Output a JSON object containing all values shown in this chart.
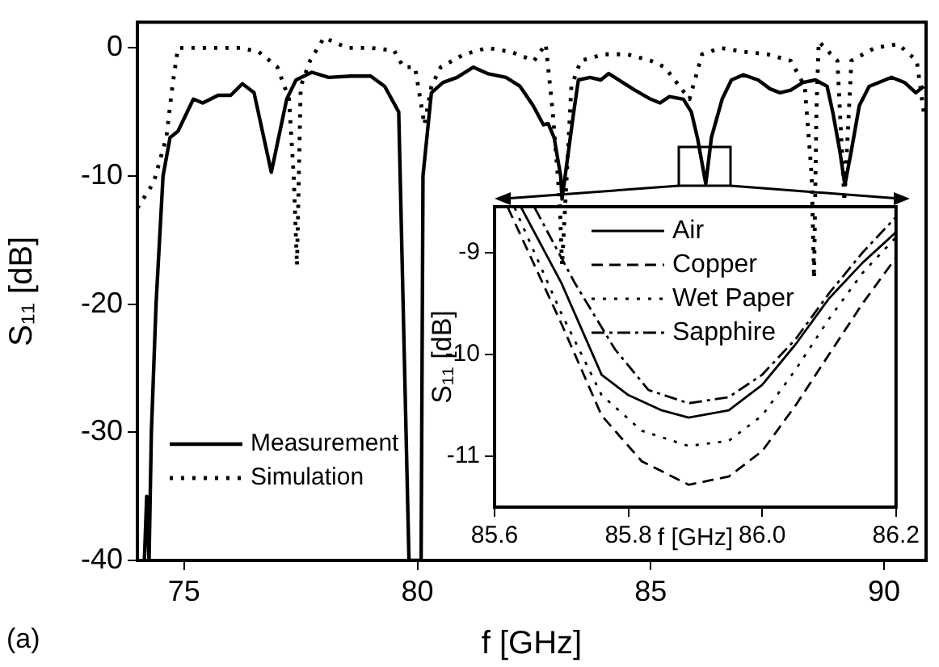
{
  "chart_data": [
    {
      "type": "line",
      "xlabel": "f [GHz]",
      "ylabel": "S₁₁ [dB]",
      "xlim": [
        74,
        90.9
      ],
      "ylim": [
        -40,
        2
      ],
      "xticks": [
        75,
        80,
        85,
        90
      ],
      "yticks": [
        0,
        -10,
        -20,
        -30,
        -40
      ],
      "grid": false,
      "legend": "bottom left",
      "marker": "none",
      "annotations": [
        "(a)"
      ],
      "series": [
        {
          "name": "Measurement",
          "color": "#000000",
          "line_style": "solid",
          "x": [
            74.15,
            74.2,
            74.25,
            74.3,
            74.4,
            74.55,
            74.7,
            74.87,
            75.2,
            75.4,
            75.73,
            76.0,
            76.25,
            76.5,
            76.87,
            77.2,
            77.4,
            77.74,
            78.1,
            78.57,
            79.0,
            79.3,
            79.6,
            79.82,
            79.88,
            80.08,
            80.12,
            80.3,
            80.55,
            80.85,
            81.2,
            81.5,
            81.9,
            82.2,
            82.48,
            82.7,
            82.8,
            82.93,
            83.07,
            83.1,
            83.35,
            83.45,
            83.7,
            83.93,
            84.1,
            84.4,
            84.66,
            85.0,
            85.2,
            85.4,
            85.7,
            85.87,
            86.0,
            86.18,
            86.3,
            86.53,
            86.73,
            86.98,
            87.3,
            87.56,
            87.77,
            88.0,
            88.26,
            88.53,
            88.78,
            88.9,
            89.05,
            89.16,
            89.3,
            89.47,
            89.68,
            90.16,
            90.44,
            90.68,
            90.85
          ],
          "values": [
            -40,
            -35,
            -40,
            -30,
            -20,
            -10,
            -7,
            -6.5,
            -4,
            -4.3,
            -3.7,
            -3.7,
            -2.8,
            -3.5,
            -9.7,
            -4,
            -2.5,
            -1.9,
            -2.3,
            -2.2,
            -2.2,
            -3,
            -5,
            -40,
            -40,
            -40,
            -10,
            -3.5,
            -2.7,
            -2.3,
            -1.5,
            -2,
            -2.3,
            -3,
            -4.5,
            -6,
            -5.9,
            -7,
            -10,
            -11.8,
            -5,
            -2.5,
            -2.3,
            -2.5,
            -2,
            -2.7,
            -3.3,
            -4,
            -4.3,
            -3.8,
            -4,
            -5,
            -7,
            -10.6,
            -7,
            -4,
            -2.5,
            -2.1,
            -2.5,
            -3.2,
            -3.5,
            -3.3,
            -2.7,
            -2.5,
            -3,
            -5,
            -8,
            -10.7,
            -8,
            -4.5,
            -3,
            -2.3,
            -2.7,
            -3.5,
            -3
          ]
        },
        {
          "name": "Simulation",
          "color": "#000000",
          "line_style": "dotted",
          "x": [
            74.0,
            74.35,
            74.62,
            74.75,
            74.87,
            75.5,
            76.2,
            76.6,
            77.0,
            77.25,
            77.35,
            77.42,
            77.5,
            77.7,
            78.0,
            78.5,
            79.0,
            79.5,
            79.7,
            79.95,
            80.15,
            80.3,
            80.5,
            81.0,
            81.5,
            82.0,
            82.5,
            82.75,
            82.9,
            83.05,
            83.1,
            83.3,
            83.5,
            84.0,
            84.5,
            85.0,
            85.3,
            85.83,
            86.1,
            86.5,
            87.0,
            87.5,
            88.0,
            88.3,
            88.45,
            88.5,
            88.55,
            88.6,
            89.0,
            89.15,
            89.3,
            89.8,
            90.3,
            90.7,
            90.85
          ],
          "values": [
            -12.5,
            -10.5,
            -7,
            -3,
            0,
            0,
            0,
            -0.3,
            -1.5,
            -4,
            -10,
            -17,
            -3,
            -1,
            0.8,
            0,
            0,
            -0.2,
            -1.5,
            -1.5,
            -6,
            -3,
            -1.5,
            -0.5,
            0,
            -0.3,
            -1,
            0.3,
            -5,
            -12,
            -17,
            -3,
            -1,
            -0.5,
            -0.5,
            -1,
            -1.5,
            -4,
            -0.5,
            0,
            -0.3,
            -0.5,
            -1,
            -3,
            -10,
            -18,
            -5,
            0.5,
            -1,
            -12,
            -1,
            0,
            0.3,
            -1,
            -5
          ]
        }
      ]
    },
    {
      "type": "line",
      "xlabel": "f [GHz]",
      "ylabel": "S₁₁ [dB]",
      "xlim": [
        85.6,
        86.2
      ],
      "ylim": [
        -11.5,
        -8.55
      ],
      "xticks": [
        85.6,
        85.8,
        {
          "value": 86,
          "label": "86.0"
        },
        86.2
      ],
      "yticks": [
        -9,
        -10,
        -11
      ],
      "grid": false,
      "legend": "top",
      "marker": "none",
      "series": [
        {
          "name": "Air",
          "color": "#000000",
          "line_style": "solid",
          "x": [
            85.64,
            85.7,
            85.76,
            85.8,
            85.85,
            85.89,
            85.95,
            86.0,
            86.05,
            86.1,
            86.15,
            86.2
          ],
          "values": [
            -8.56,
            -9.3,
            -10.2,
            -10.4,
            -10.55,
            -10.62,
            -10.55,
            -10.3,
            -9.9,
            -9.45,
            -9.1,
            -8.8
          ]
        },
        {
          "name": "Copper",
          "color": "#000000",
          "line_style": "dashed",
          "x": [
            85.62,
            85.7,
            85.76,
            85.82,
            85.89,
            85.95,
            86.0,
            86.05,
            86.1,
            86.15,
            86.2
          ],
          "values": [
            -8.56,
            -9.7,
            -10.6,
            -11.05,
            -11.28,
            -11.2,
            -10.95,
            -10.5,
            -10.0,
            -9.5,
            -9.05
          ]
        },
        {
          "name": "Wet Paper",
          "color": "#000000",
          "line_style": "dotted",
          "x": [
            85.63,
            85.7,
            85.76,
            85.82,
            85.89,
            85.95,
            86.0,
            86.05,
            86.1,
            86.15,
            86.2
          ],
          "values": [
            -8.56,
            -9.6,
            -10.4,
            -10.75,
            -10.9,
            -10.85,
            -10.6,
            -10.15,
            -9.65,
            -9.2,
            -8.85
          ]
        },
        {
          "name": "Sapphire",
          "color": "#000000",
          "line_style": "dashdot",
          "x": [
            85.66,
            85.72,
            85.78,
            85.83,
            85.89,
            85.95,
            86.0,
            86.05,
            86.1,
            86.15,
            86.2
          ],
          "values": [
            -8.56,
            -9.3,
            -9.95,
            -10.35,
            -10.48,
            -10.42,
            -10.2,
            -9.85,
            -9.4,
            -9.0,
            -8.65
          ]
        }
      ]
    }
  ]
}
